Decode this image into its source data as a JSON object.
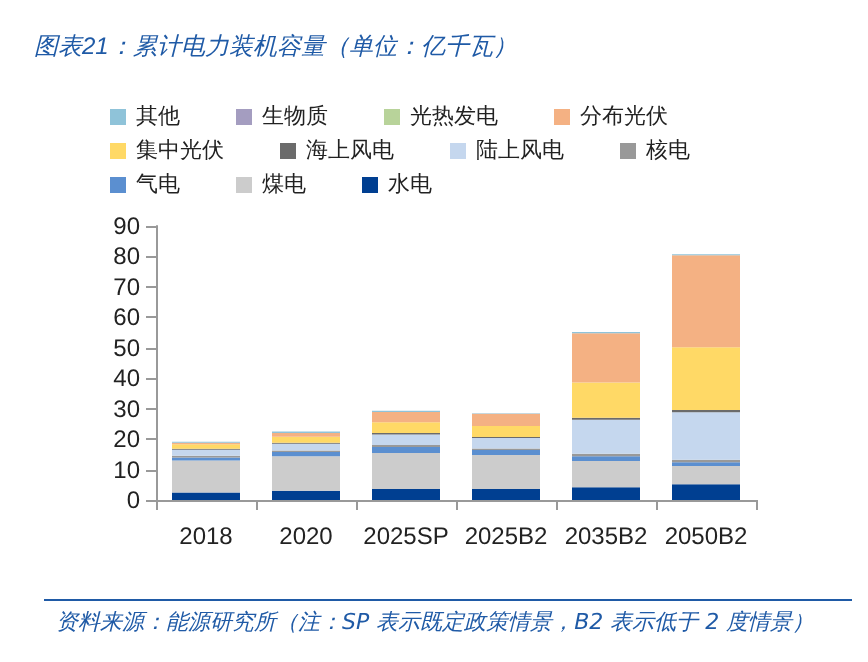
{
  "chart_data": {
    "type": "bar",
    "stacked": true,
    "title": "图表21：累计电力装机容量（单位：亿千瓦）",
    "categories": [
      "2018",
      "2020",
      "2025SP",
      "2025B2",
      "2035B2",
      "2050B2"
    ],
    "ylim": [
      0,
      90
    ],
    "yticks": [
      0,
      10,
      20,
      30,
      40,
      50,
      60,
      70,
      80,
      90
    ],
    "grid": false,
    "legend": "top",
    "series": [
      {
        "name": "水电",
        "color": "#003f91",
        "values": [
          2.5,
          3,
          3.6,
          3.6,
          4.2,
          5.2
        ]
      },
      {
        "name": "煤电",
        "color": "#cccccc",
        "values": [
          10.5,
          11.4,
          11.8,
          11.2,
          8.6,
          6
        ]
      },
      {
        "name": "气电",
        "color": "#5b8fd0",
        "values": [
          1,
          1.4,
          2,
          1.6,
          1.6,
          1.2
        ]
      },
      {
        "name": "核电",
        "color": "#999999",
        "values": [
          0.5,
          0.5,
          0.7,
          0.5,
          0.8,
          0.8
        ]
      },
      {
        "name": "陆上风电",
        "color": "#c5d7ee",
        "values": [
          2,
          2.2,
          3.4,
          3.5,
          11.2,
          15.6
        ]
      },
      {
        "name": "海上风电",
        "color": "#6b6b6b",
        "values": [
          0.3,
          0.3,
          0.5,
          0.3,
          0.6,
          0.8
        ]
      },
      {
        "name": "集中光伏",
        "color": "#ffd966",
        "values": [
          1.5,
          2,
          3.5,
          3.6,
          11.6,
          20.6
        ]
      },
      {
        "name": "分布光伏",
        "color": "#f4b183",
        "values": [
          0.5,
          1.2,
          3.4,
          4,
          16.2,
          30.2
        ]
      },
      {
        "name": "光热发电",
        "color": "#b8d39a",
        "values": [
          0,
          0,
          0,
          0,
          0,
          0
        ]
      },
      {
        "name": "生物质",
        "color": "#a49dc0",
        "values": [
          0,
          0,
          0,
          0,
          0,
          0
        ]
      },
      {
        "name": "其他",
        "color": "#8fc3d9",
        "values": [
          0.3,
          0.5,
          0.4,
          0.2,
          0.4,
          0.3
        ]
      }
    ],
    "annotations": [
      "资料来源：能源研究所（注：SP 表示既定政策情景，B2 表示低于 2 度情景）"
    ]
  }
}
